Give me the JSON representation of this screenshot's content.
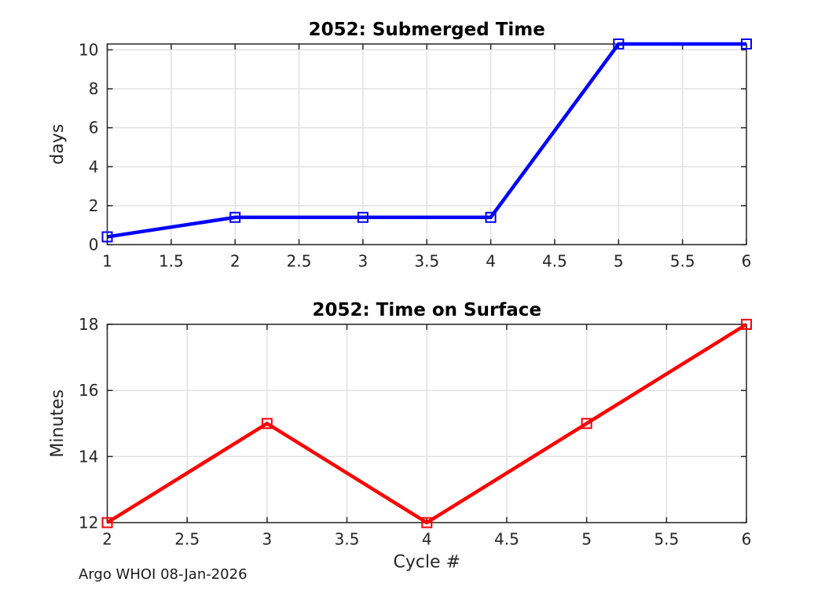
{
  "footer": {
    "text": "Argo WHOI 08-Jan-2026"
  },
  "style_colors": {
    "axis": "#262626",
    "grid": "#e0e0e0",
    "title": "#000000",
    "tick_label": "#262626",
    "blue_series": "#0000ff",
    "red_series": "#ff0000"
  },
  "chart_data": [
    {
      "type": "line",
      "title": "2052: Submerged Time",
      "xlabel": "",
      "ylabel": "days",
      "x": [
        1,
        2,
        3,
        4,
        5,
        6
      ],
      "y": [
        0.4,
        1.4,
        1.4,
        1.4,
        10.3,
        10.3
      ],
      "series_name": "submerged-time-days",
      "line_color": "#0000ff",
      "marker": "square",
      "xlim": [
        1,
        6
      ],
      "ylim": [
        0,
        10.3
      ],
      "xticks": [
        1,
        1.5,
        2,
        2.5,
        3,
        3.5,
        4,
        4.5,
        5,
        5.5,
        6
      ],
      "xtick_labels": [
        "1",
        "1.5",
        "2",
        "2.5",
        "3",
        "3.5",
        "4",
        "4.5",
        "5",
        "5.5",
        "6"
      ],
      "yticks": [
        0,
        2,
        4,
        6,
        8,
        10
      ],
      "ytick_labels": [
        "0",
        "2",
        "4",
        "6",
        "8",
        "10"
      ],
      "grid": true,
      "legend": null
    },
    {
      "type": "line",
      "title": "2052: Time on Surface",
      "xlabel": "Cycle #",
      "ylabel": "Minutes",
      "x": [
        2,
        3,
        4,
        5,
        6
      ],
      "y": [
        12,
        15,
        12,
        15,
        18
      ],
      "series_name": "time-on-surface-minutes",
      "line_color": "#ff0000",
      "marker": "square",
      "xlim": [
        2,
        6
      ],
      "ylim": [
        12,
        18
      ],
      "xticks": [
        2,
        2.5,
        3,
        3.5,
        4,
        4.5,
        5,
        5.5,
        6
      ],
      "xtick_labels": [
        "2",
        "2.5",
        "3",
        "3.5",
        "4",
        "4.5",
        "5",
        "5.5",
        "6"
      ],
      "yticks": [
        12,
        14,
        16,
        18
      ],
      "ytick_labels": [
        "12",
        "14",
        "16",
        "18"
      ],
      "grid": true,
      "legend": null
    }
  ]
}
